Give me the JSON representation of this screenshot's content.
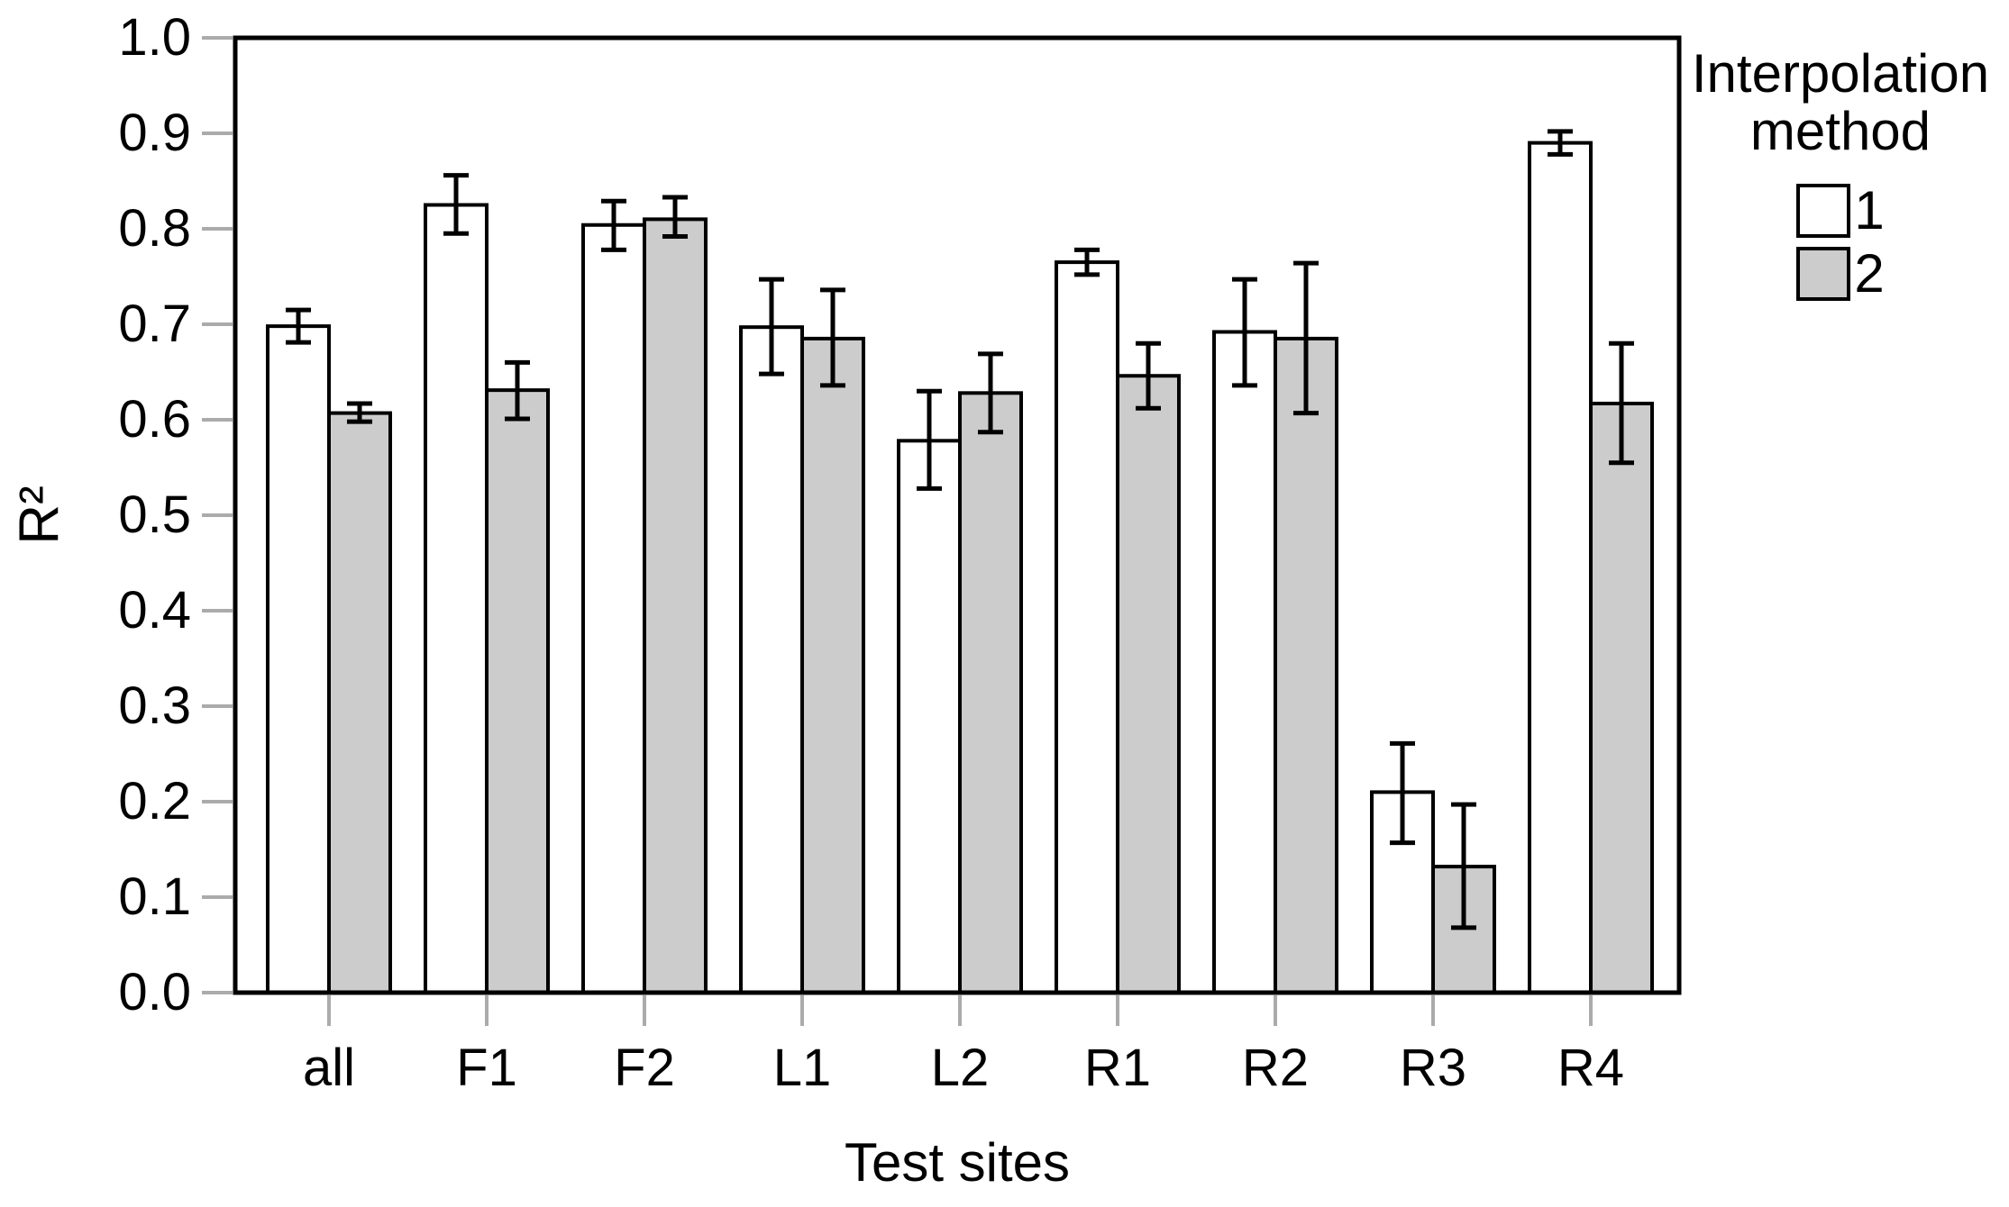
{
  "chart_data": {
    "type": "bar",
    "title": "",
    "xlabel": "Test sites",
    "ylabel": "R²",
    "ylim": [
      0.0,
      1.0
    ],
    "ytick_labels": [
      "0.0",
      "0.1",
      "0.2",
      "0.3",
      "0.4",
      "0.5",
      "0.6",
      "0.7",
      "0.8",
      "0.9",
      "1.0"
    ],
    "grid": false,
    "panel_border": true,
    "categories": [
      "all",
      "F1",
      "F2",
      "L1",
      "L2",
      "R1",
      "R2",
      "R3",
      "R4"
    ],
    "legend": {
      "title": "Interpolation method",
      "position": "right-top",
      "items": [
        {
          "label": "1",
          "fill": "#FFFFFF"
        },
        {
          "label": "2",
          "fill": "#CCCCCC"
        }
      ]
    },
    "series": [
      {
        "name": "1",
        "fill": "#FFFFFF",
        "values": [
          0.698,
          0.825,
          0.804,
          0.697,
          0.578,
          0.765,
          0.692,
          0.21,
          0.89
        ],
        "error_low": [
          0.681,
          0.795,
          0.778,
          0.648,
          0.528,
          0.752,
          0.636,
          0.157,
          0.878
        ],
        "error_high": [
          0.715,
          0.856,
          0.829,
          0.747,
          0.63,
          0.778,
          0.747,
          0.261,
          0.902
        ]
      },
      {
        "name": "2",
        "fill": "#CCCCCC",
        "values": [
          0.607,
          0.631,
          0.81,
          0.685,
          0.628,
          0.646,
          0.685,
          0.132,
          0.617
        ],
        "error_low": [
          0.598,
          0.601,
          0.792,
          0.636,
          0.587,
          0.612,
          0.607,
          0.068,
          0.555
        ],
        "error_high": [
          0.617,
          0.66,
          0.833,
          0.736,
          0.669,
          0.68,
          0.764,
          0.197,
          0.68
        ]
      }
    ],
    "colors": {
      "bar_outline": "#000000",
      "error_bar": "#000000",
      "tick": "#ABABAB",
      "panel_border": "#000000"
    }
  }
}
